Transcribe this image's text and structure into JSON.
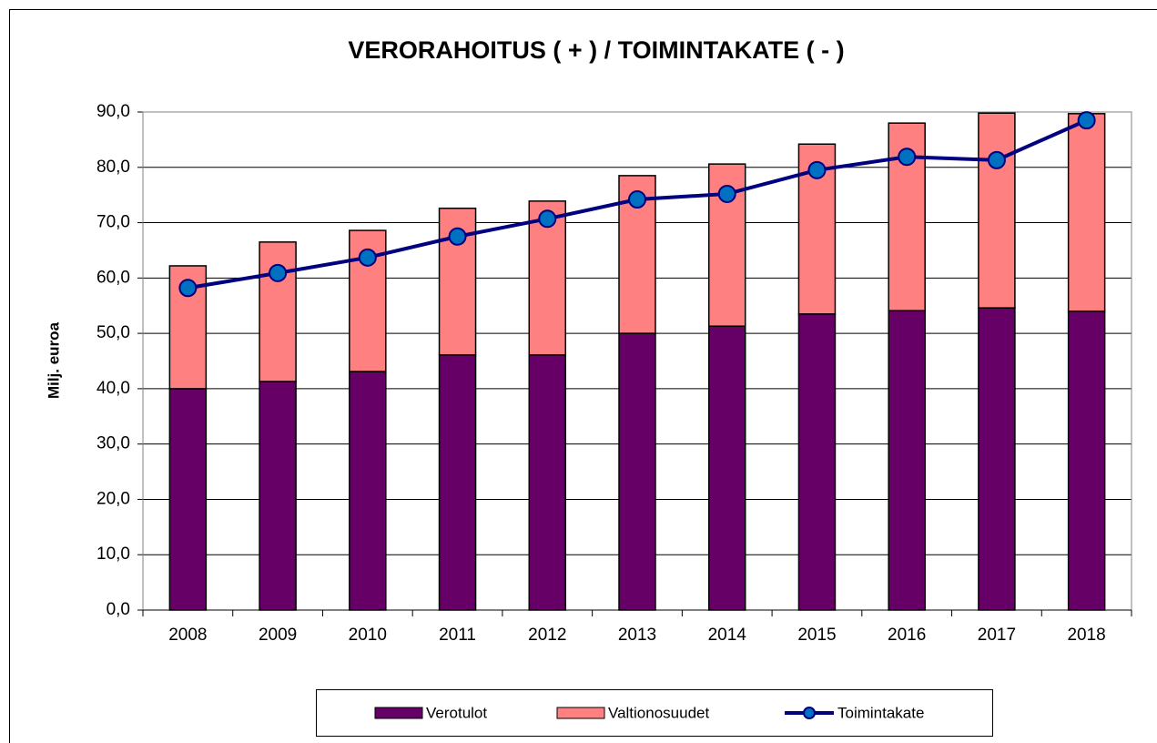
{
  "chart_data": {
    "type": "bar",
    "stacked": true,
    "title": "VERORAHOITUS ( + ) / TOIMINTAKATE ( - )",
    "y_label": "Milj. euroa",
    "categories": [
      "2008",
      "2009",
      "2010",
      "2011",
      "2012",
      "2013",
      "2014",
      "2015",
      "2016",
      "2017",
      "2018"
    ],
    "series": [
      {
        "name": "Verotulot",
        "type": "bar",
        "color": "#660066",
        "values": [
          40.0,
          41.3,
          43.1,
          46.1,
          46.1,
          50.0,
          51.3,
          53.5,
          54.1,
          54.6,
          54.0
        ]
      },
      {
        "name": "Valtionosuudet",
        "type": "bar",
        "color": "#ff8080",
        "values": [
          22.2,
          25.2,
          25.5,
          26.5,
          27.8,
          28.5,
          29.3,
          30.7,
          33.9,
          35.2,
          35.7
        ]
      },
      {
        "name": "Toimintakate",
        "type": "line",
        "color": "#000080",
        "marker_color": "#0070c0",
        "values": [
          58.2,
          60.9,
          63.7,
          67.5,
          70.7,
          74.2,
          75.2,
          79.5,
          81.9,
          81.3,
          88.5
        ]
      }
    ],
    "ylim": [
      0,
      90
    ],
    "yticks": [
      {
        "value": 0,
        "label": "0,0"
      },
      {
        "value": 10,
        "label": "10,0"
      },
      {
        "value": 20,
        "label": "20,0"
      },
      {
        "value": 30,
        "label": "30,0"
      },
      {
        "value": 40,
        "label": "40,0"
      },
      {
        "value": 50,
        "label": "50,0"
      },
      {
        "value": 60,
        "label": "60,0"
      },
      {
        "value": 70,
        "label": "70,0"
      },
      {
        "value": 80,
        "label": "80,0"
      },
      {
        "value": 90,
        "label": "90,0"
      }
    ],
    "grid": true,
    "legend": "bottom"
  }
}
